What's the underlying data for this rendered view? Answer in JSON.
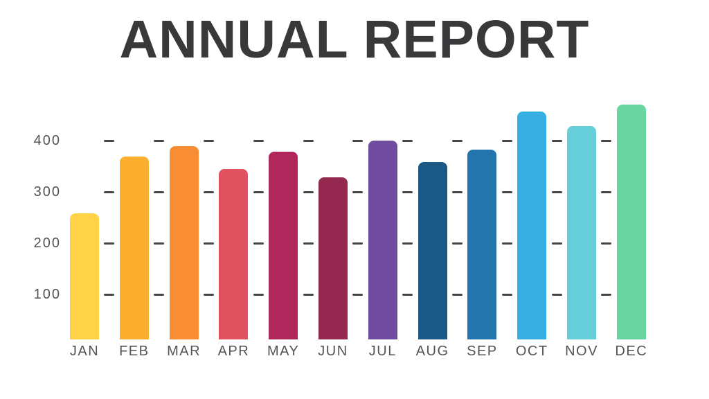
{
  "title": "ANNUAL REPORT",
  "chart_data": {
    "type": "bar",
    "title": "ANNUAL REPORT",
    "categories": [
      "JAN",
      "FEB",
      "MAR",
      "APR",
      "MAY",
      "JUN",
      "JUL",
      "AUG",
      "SEP",
      "OCT",
      "NOV",
      "DEC"
    ],
    "values": [
      258,
      369,
      389,
      344,
      379,
      328,
      400,
      358,
      382,
      457,
      428,
      470
    ],
    "bar_colors": [
      "#FFD345",
      "#FCAF2E",
      "#F88D33",
      "#E0525F",
      "#B0275B",
      "#95284F",
      "#6F4C9F",
      "#1B5A87",
      "#2475AD",
      "#38AFE3",
      "#66CED9",
      "#68D5A1"
    ],
    "yticks": [
      400,
      300,
      200,
      100
    ],
    "ylim": [
      0,
      480
    ],
    "xlabel": "",
    "ylabel": "",
    "legend": "none",
    "grid": "short dashed tick marks between adjacent bars at each 100-unit level"
  },
  "style": {
    "background": "#FFFFFF",
    "title_color": "#39393B",
    "axis_label_color": "#515357",
    "tick_dash_color": "#454545"
  }
}
